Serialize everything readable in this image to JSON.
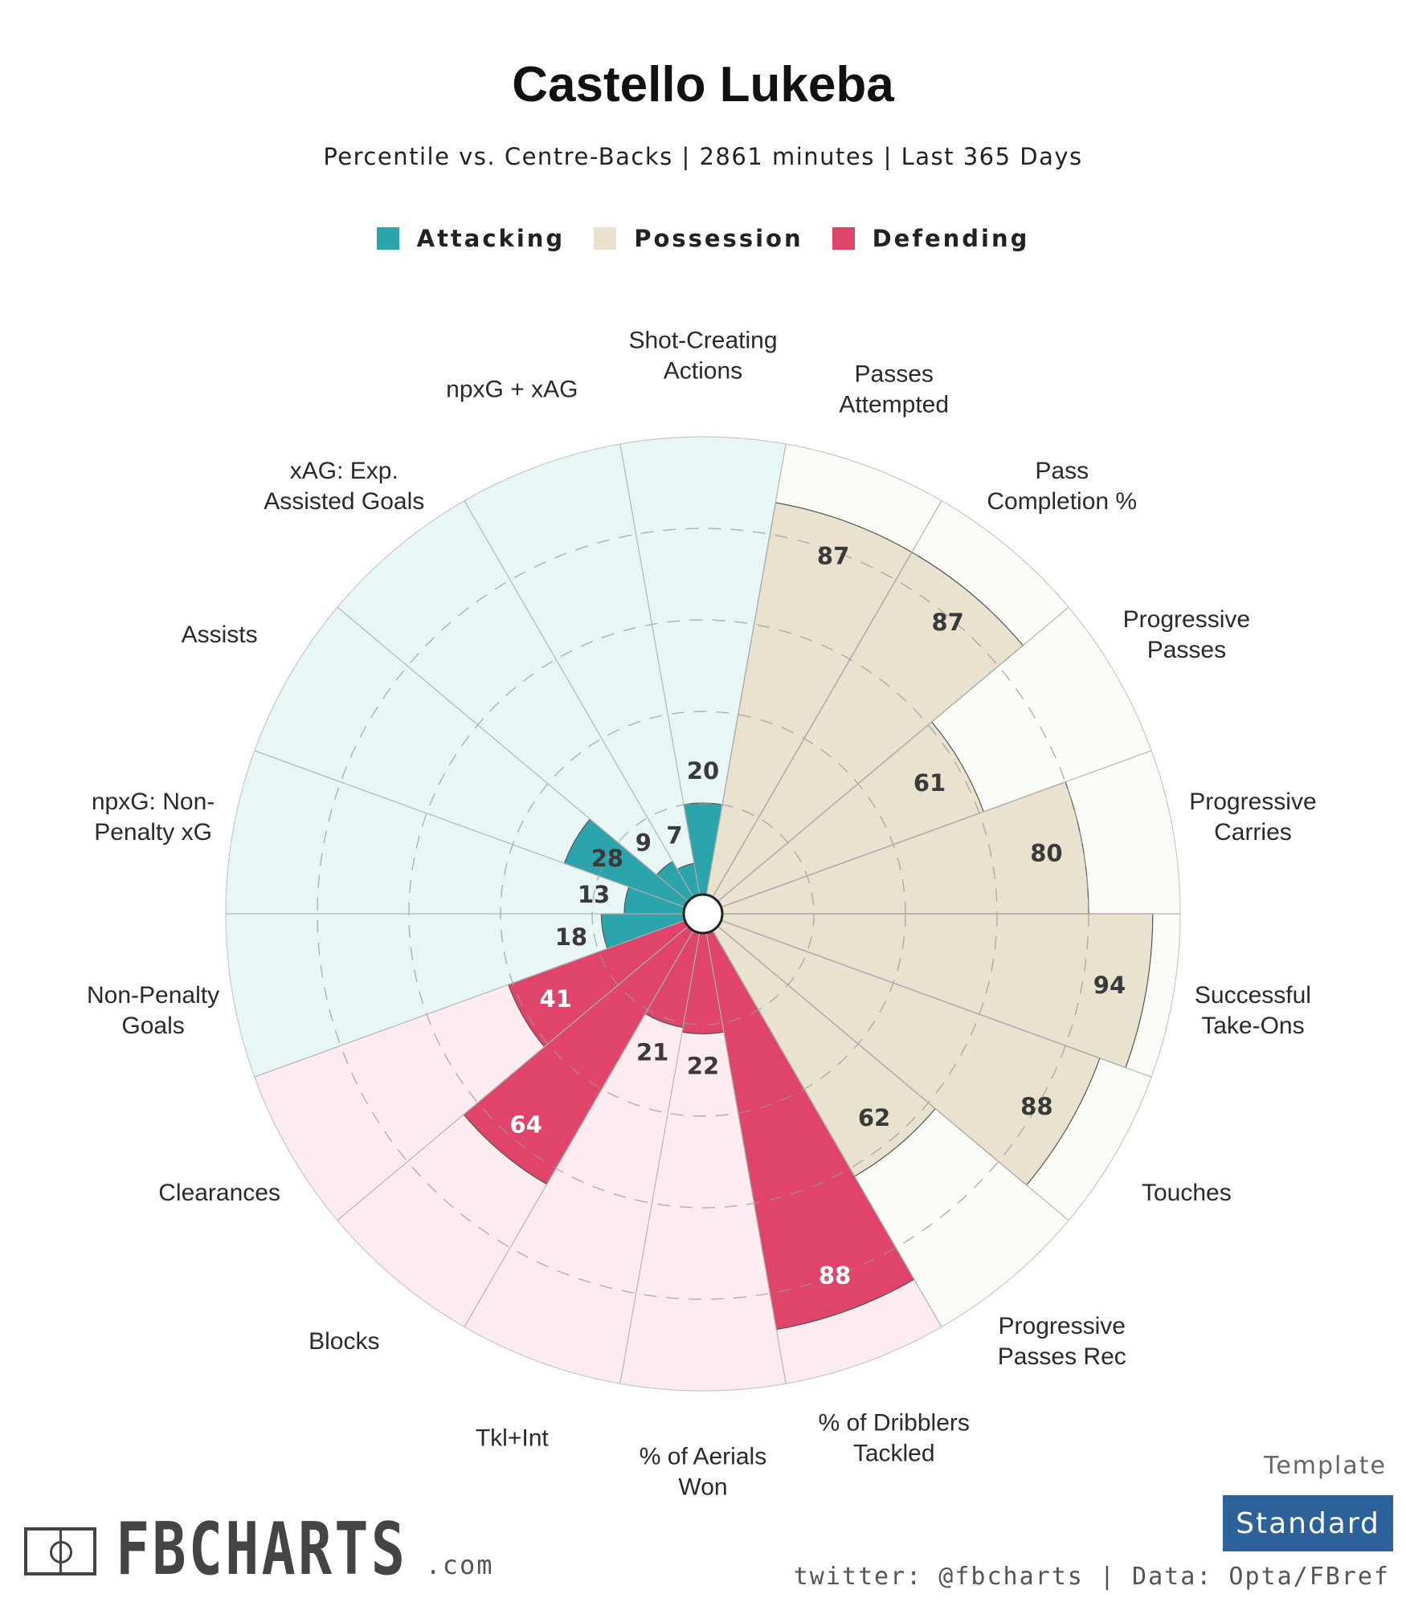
{
  "title": "Castello Lukeba",
  "subtitle": "Percentile vs. Centre-Backs | 2861 minutes | Last 365 Days",
  "legend": [
    {
      "label": "Attacking",
      "color": "#2ca4ab"
    },
    {
      "label": "Possession",
      "color": "#e8e2cf"
    },
    {
      "label": "Defending",
      "color": "#e0446a"
    }
  ],
  "colors": {
    "attacking": "#2ca4ab",
    "attacking_bg": "#e9f6f6",
    "possession": "#e8e2cf",
    "possession_bg": "#fbfbf8",
    "defending": "#e0446a",
    "defending_bg": "#fcebf0"
  },
  "chart_data": {
    "type": "polar-bar",
    "title": "Castello Lukeba",
    "subtitle": "Percentile vs. Centre-Backs | 2861 minutes | Last 365 Days",
    "rlim": [
      0,
      100
    ],
    "grid": true,
    "legend_position": "top",
    "categories": [
      {
        "label": [
          "Shot-Creating",
          "Actions"
        ],
        "value": 20,
        "group": "attacking"
      },
      {
        "label": [
          "Passes",
          "Attempted"
        ],
        "value": 87,
        "group": "possession"
      },
      {
        "label": [
          "Pass",
          "Completion %"
        ],
        "value": 87,
        "group": "possession"
      },
      {
        "label": [
          "Progressive",
          "Passes"
        ],
        "value": 61,
        "group": "possession"
      },
      {
        "label": [
          "Progressive",
          "Carries"
        ],
        "value": 80,
        "group": "possession"
      },
      {
        "label": [
          "Successful",
          "Take-Ons"
        ],
        "value": 94,
        "group": "possession"
      },
      {
        "label": [
          "Touches"
        ],
        "value": 88,
        "group": "possession"
      },
      {
        "label": [
          "Progressive",
          "Passes Rec"
        ],
        "value": 62,
        "group": "possession"
      },
      {
        "label": [
          "% of Dribblers",
          "Tackled"
        ],
        "value": 88,
        "group": "defending"
      },
      {
        "label": [
          "% of Aerials",
          "Won"
        ],
        "value": 22,
        "group": "defending"
      },
      {
        "label": [
          "Tkl+Int"
        ],
        "value": 21,
        "group": "defending"
      },
      {
        "label": [
          "Blocks"
        ],
        "value": 64,
        "group": "defending"
      },
      {
        "label": [
          "Clearances"
        ],
        "value": 41,
        "group": "defending"
      },
      {
        "label": [
          "Non-Penalty",
          "Goals"
        ],
        "value": 18,
        "group": "attacking"
      },
      {
        "label": [
          "npxG: Non-",
          "Penalty xG"
        ],
        "value": 13,
        "group": "attacking"
      },
      {
        "label": [
          "Assists"
        ],
        "value": 28,
        "group": "attacking"
      },
      {
        "label": [
          "xAG: Exp.",
          "Assisted Goals"
        ],
        "value": 9,
        "group": "attacking"
      },
      {
        "label": [
          "npxG + xAG"
        ],
        "value": 7,
        "group": "attacking"
      }
    ]
  },
  "footer": {
    "brand": "FBCHARTS",
    "brand_suffix": ".com",
    "template_label": "Template",
    "template_value": "Standard",
    "credit": "twitter: @fbcharts | Data: Opta/FBref"
  }
}
